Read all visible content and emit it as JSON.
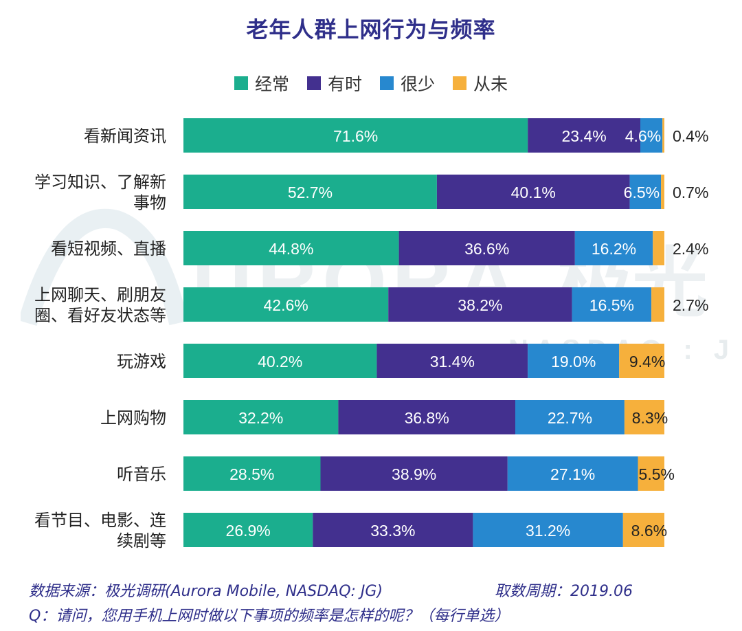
{
  "chart_data": {
    "type": "bar",
    "orientation": "horizontal",
    "stacked": true,
    "title": "老年人群上网行为与频率",
    "categories": [
      "看新闻资讯",
      "学习知识、了解新\n事物",
      "看短视频、直播",
      "上网聊天、刷朋友\n圈、看好友状态等",
      "玩游戏",
      "上网购物",
      "听音乐",
      "看节目、电影、连\n续剧等"
    ],
    "series": [
      {
        "name": "经常",
        "color": "#1bae8e",
        "values": [
          71.6,
          52.7,
          44.8,
          42.6,
          40.2,
          32.2,
          28.5,
          26.9
        ]
      },
      {
        "name": "有时",
        "color": "#43308f",
        "values": [
          23.4,
          40.1,
          36.6,
          38.2,
          31.4,
          36.8,
          38.9,
          33.3
        ]
      },
      {
        "name": "很少",
        "color": "#2788cf",
        "values": [
          4.6,
          6.5,
          16.2,
          16.5,
          19.0,
          22.7,
          27.1,
          31.2
        ]
      },
      {
        "name": "从未",
        "color": "#f6b03c",
        "values": [
          0.4,
          0.7,
          2.4,
          2.7,
          9.4,
          8.3,
          5.5,
          8.6
        ]
      }
    ],
    "data_labels": [
      [
        "71.6%",
        "23.4%",
        "4.6%",
        "0.4%"
      ],
      [
        "52.7%",
        "40.1%",
        "6.5%",
        "0.7%"
      ],
      [
        "44.8%",
        "36.6%",
        "16.2%",
        "2.4%"
      ],
      [
        "42.6%",
        "38.2%",
        "16.5%",
        "2.7%"
      ],
      [
        "40.2%",
        "31.4%",
        "19.0%",
        "9.4%"
      ],
      [
        "32.2%",
        "36.8%",
        "22.7%",
        "8.3%"
      ],
      [
        "28.5%",
        "38.9%",
        "27.1%",
        "5.5%"
      ],
      [
        "26.9%",
        "33.3%",
        "31.2%",
        "8.6%"
      ]
    ],
    "xlim": [
      0,
      100
    ],
    "legend_position": "top-center",
    "grid": false
  },
  "watermark": {
    "brand": "URORA",
    "brand_cn": "极光",
    "ticker": "NASDAQ : JG"
  },
  "footer": {
    "source": "数据来源：极光调研(Aurora Mobile, NASDAQ: JG)",
    "period": "取数周期：2019.06",
    "question": "Q：请问，您用手机上网时做以下事项的频率是怎样的呢？（每行单选）"
  }
}
